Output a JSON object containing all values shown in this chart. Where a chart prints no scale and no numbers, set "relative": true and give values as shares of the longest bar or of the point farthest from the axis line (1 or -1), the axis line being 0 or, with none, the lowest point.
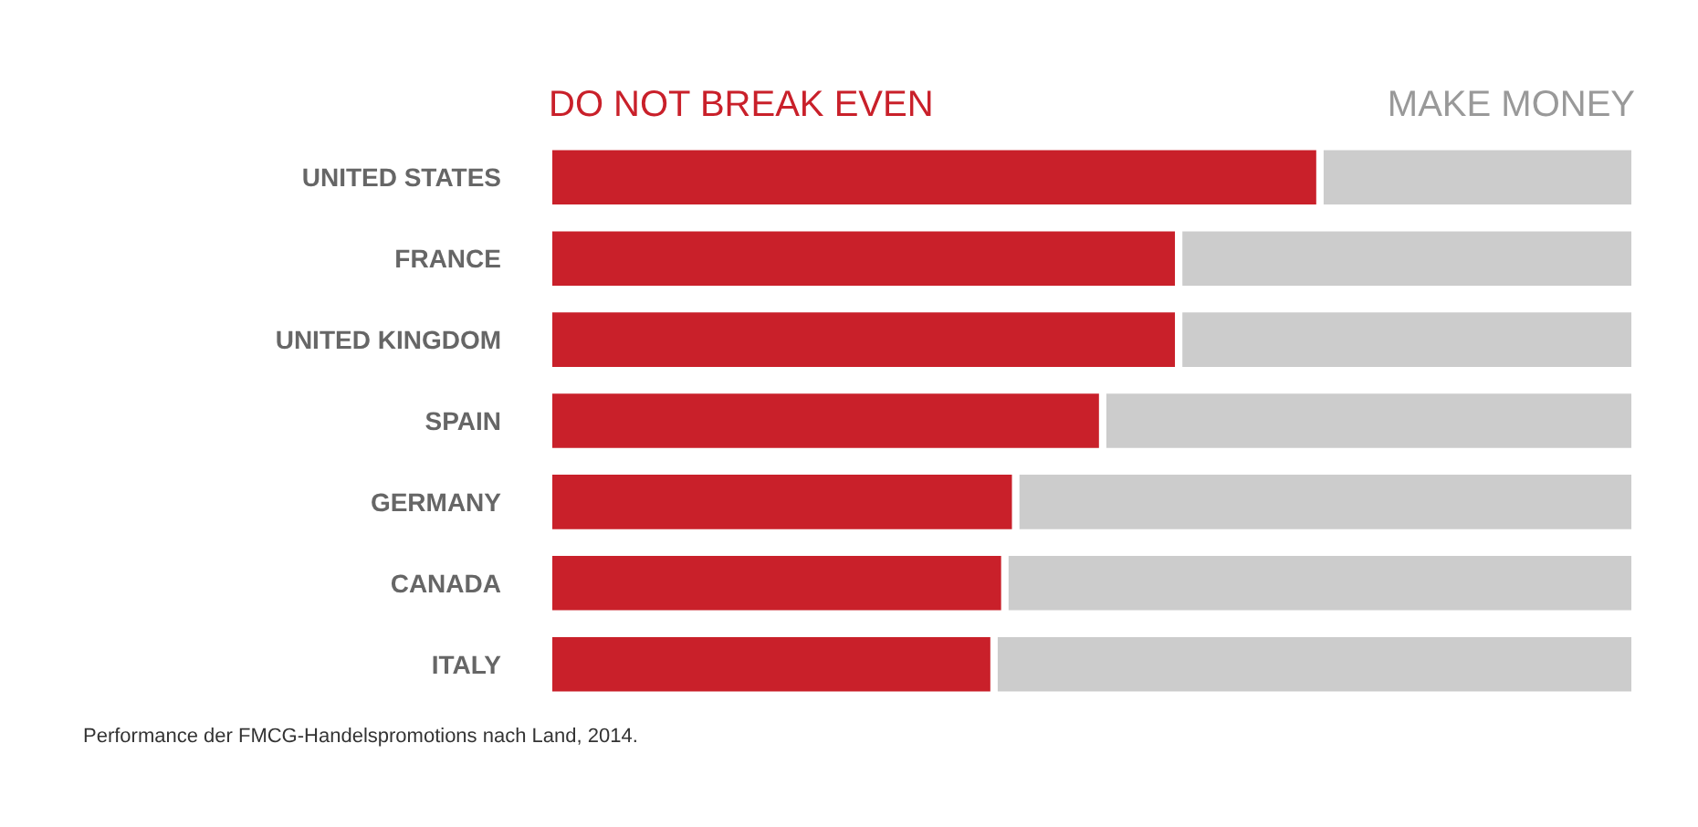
{
  "chart_data": {
    "type": "bar",
    "orientation": "horizontal",
    "stacked": true,
    "relative": true,
    "legend": "top",
    "categories": [
      "UNITED STATES",
      "FRANCE",
      "UNITED KINGDOM",
      "SPAIN",
      "GERMANY",
      "CANADA",
      "ITALY"
    ],
    "series": [
      {
        "name": "DO NOT BREAK EVEN",
        "color": "#c9202a",
        "values": [
          0.71,
          0.58,
          0.58,
          0.51,
          0.43,
          0.42,
          0.41
        ]
      },
      {
        "name": "MAKE MONEY",
        "color": "#cccccc",
        "values": [
          0.29,
          0.42,
          0.42,
          0.49,
          0.57,
          0.58,
          0.59
        ]
      }
    ],
    "annotations": [
      "Performance der FMCG-Handelspromotions nach Land, 2014."
    ]
  }
}
